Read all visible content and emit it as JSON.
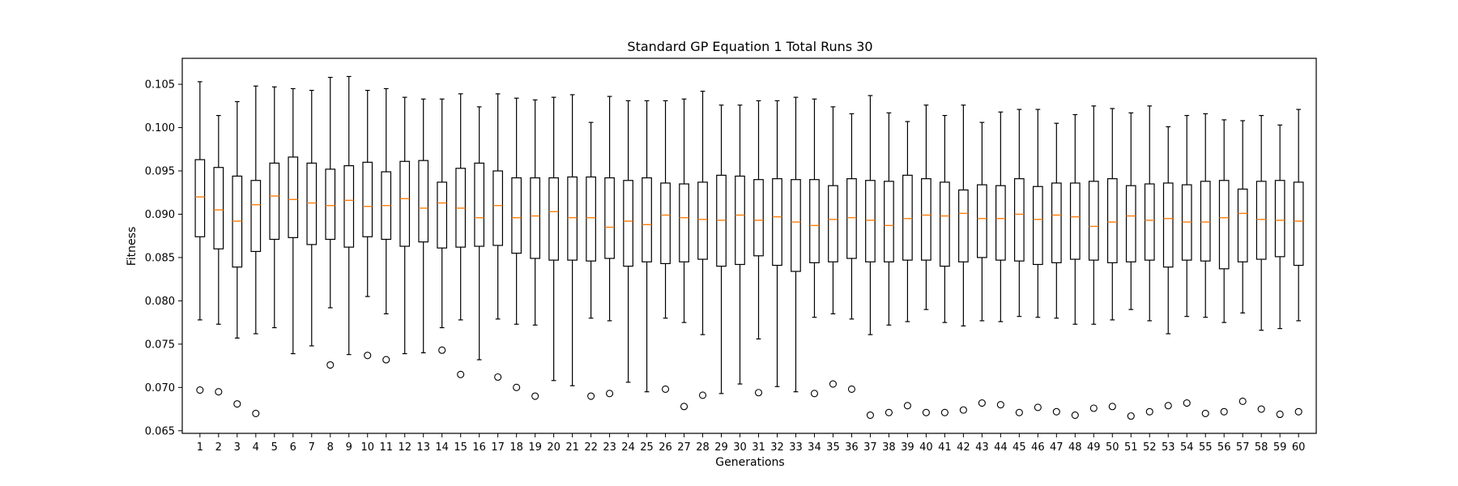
{
  "chart_data": {
    "type": "boxplot",
    "title": "Standard GP Equation 1 Total Runs 30",
    "xlabel": "Generations",
    "ylabel": "Fitness",
    "ylim": [
      0.0647,
      0.108
    ],
    "yticks": [
      0.065,
      0.07,
      0.075,
      0.08,
      0.085,
      0.09,
      0.095,
      0.1,
      0.105
    ],
    "ytick_labels": [
      "0.065",
      "0.070",
      "0.075",
      "0.080",
      "0.085",
      "0.090",
      "0.095",
      "0.100",
      "0.105"
    ],
    "grid": false,
    "colors": {
      "box": "#000000",
      "median": "#ff7f0e",
      "whisker": "#000000",
      "flier": "#000000"
    },
    "categories": [
      "1",
      "2",
      "3",
      "4",
      "5",
      "6",
      "7",
      "8",
      "9",
      "10",
      "11",
      "12",
      "13",
      "14",
      "15",
      "16",
      "17",
      "18",
      "19",
      "20",
      "21",
      "22",
      "23",
      "24",
      "25",
      "26",
      "27",
      "28",
      "29",
      "30",
      "31",
      "32",
      "33",
      "34",
      "35",
      "36",
      "37",
      "38",
      "39",
      "40",
      "41",
      "42",
      "43",
      "44",
      "45",
      "46",
      "47",
      "48",
      "49",
      "50",
      "51",
      "52",
      "53",
      "54",
      "55",
      "56",
      "57",
      "58",
      "59",
      "60"
    ],
    "boxes": [
      {
        "wlo": 0.0778,
        "q1": 0.0874,
        "med": 0.092,
        "q3": 0.0963,
        "whi": 0.1053,
        "fliers": [
          0.0697
        ]
      },
      {
        "wlo": 0.0773,
        "q1": 0.086,
        "med": 0.0905,
        "q3": 0.0954,
        "whi": 0.1014,
        "fliers": [
          0.0695
        ]
      },
      {
        "wlo": 0.0757,
        "q1": 0.0839,
        "med": 0.0892,
        "q3": 0.0944,
        "whi": 0.103,
        "fliers": [
          0.0681
        ]
      },
      {
        "wlo": 0.0762,
        "q1": 0.0857,
        "med": 0.0911,
        "q3": 0.0939,
        "whi": 0.1048,
        "fliers": [
          0.067
        ]
      },
      {
        "wlo": 0.0769,
        "q1": 0.0871,
        "med": 0.0921,
        "q3": 0.0959,
        "whi": 0.1047,
        "fliers": []
      },
      {
        "wlo": 0.0739,
        "q1": 0.0873,
        "med": 0.0917,
        "q3": 0.0966,
        "whi": 0.1045,
        "fliers": []
      },
      {
        "wlo": 0.0748,
        "q1": 0.0865,
        "med": 0.0913,
        "q3": 0.0959,
        "whi": 0.1043,
        "fliers": []
      },
      {
        "wlo": 0.0792,
        "q1": 0.0871,
        "med": 0.091,
        "q3": 0.0952,
        "whi": 0.1058,
        "fliers": [
          0.0726
        ]
      },
      {
        "wlo": 0.0738,
        "q1": 0.0862,
        "med": 0.0916,
        "q3": 0.0956,
        "whi": 0.1059,
        "fliers": []
      },
      {
        "wlo": 0.0805,
        "q1": 0.0874,
        "med": 0.0909,
        "q3": 0.096,
        "whi": 0.1043,
        "fliers": [
          0.0737
        ]
      },
      {
        "wlo": 0.0785,
        "q1": 0.0871,
        "med": 0.091,
        "q3": 0.0949,
        "whi": 0.1045,
        "fliers": [
          0.0732
        ]
      },
      {
        "wlo": 0.0739,
        "q1": 0.0863,
        "med": 0.0918,
        "q3": 0.0961,
        "whi": 0.1035,
        "fliers": []
      },
      {
        "wlo": 0.074,
        "q1": 0.0868,
        "med": 0.0907,
        "q3": 0.0962,
        "whi": 0.1033,
        "fliers": []
      },
      {
        "wlo": 0.0769,
        "q1": 0.0861,
        "med": 0.0913,
        "q3": 0.0937,
        "whi": 0.1033,
        "fliers": [
          0.0743
        ]
      },
      {
        "wlo": 0.0778,
        "q1": 0.0862,
        "med": 0.0907,
        "q3": 0.0953,
        "whi": 0.1039,
        "fliers": [
          0.0715
        ]
      },
      {
        "wlo": 0.0732,
        "q1": 0.0863,
        "med": 0.0896,
        "q3": 0.0959,
        "whi": 0.1024,
        "fliers": []
      },
      {
        "wlo": 0.0779,
        "q1": 0.0864,
        "med": 0.091,
        "q3": 0.095,
        "whi": 0.1039,
        "fliers": [
          0.0712
        ]
      },
      {
        "wlo": 0.0773,
        "q1": 0.0855,
        "med": 0.0896,
        "q3": 0.0942,
        "whi": 0.1034,
        "fliers": [
          0.07
        ]
      },
      {
        "wlo": 0.0772,
        "q1": 0.0849,
        "med": 0.0898,
        "q3": 0.0942,
        "whi": 0.1032,
        "fliers": [
          0.069
        ]
      },
      {
        "wlo": 0.0708,
        "q1": 0.0847,
        "med": 0.0903,
        "q3": 0.0942,
        "whi": 0.1035,
        "fliers": []
      },
      {
        "wlo": 0.0702,
        "q1": 0.0847,
        "med": 0.0896,
        "q3": 0.0943,
        "whi": 0.1038,
        "fliers": []
      },
      {
        "wlo": 0.078,
        "q1": 0.0846,
        "med": 0.0896,
        "q3": 0.0943,
        "whi": 0.1006,
        "fliers": [
          0.069
        ]
      },
      {
        "wlo": 0.0777,
        "q1": 0.0849,
        "med": 0.0885,
        "q3": 0.0942,
        "whi": 0.1036,
        "fliers": [
          0.0693
        ]
      },
      {
        "wlo": 0.0706,
        "q1": 0.084,
        "med": 0.0892,
        "q3": 0.0939,
        "whi": 0.1031,
        "fliers": []
      },
      {
        "wlo": 0.0695,
        "q1": 0.0845,
        "med": 0.0888,
        "q3": 0.0942,
        "whi": 0.1031,
        "fliers": []
      },
      {
        "wlo": 0.078,
        "q1": 0.0843,
        "med": 0.0899,
        "q3": 0.0936,
        "whi": 0.1031,
        "fliers": [
          0.0698
        ]
      },
      {
        "wlo": 0.0775,
        "q1": 0.0845,
        "med": 0.0896,
        "q3": 0.0935,
        "whi": 0.1033,
        "fliers": [
          0.0678
        ]
      },
      {
        "wlo": 0.0761,
        "q1": 0.0848,
        "med": 0.0894,
        "q3": 0.0937,
        "whi": 0.1042,
        "fliers": [
          0.0691
        ]
      },
      {
        "wlo": 0.0693,
        "q1": 0.084,
        "med": 0.0893,
        "q3": 0.0945,
        "whi": 0.1026,
        "fliers": []
      },
      {
        "wlo": 0.0704,
        "q1": 0.0842,
        "med": 0.0899,
        "q3": 0.0944,
        "whi": 0.1026,
        "fliers": []
      },
      {
        "wlo": 0.0756,
        "q1": 0.0852,
        "med": 0.0893,
        "q3": 0.094,
        "whi": 0.1031,
        "fliers": [
          0.0694
        ]
      },
      {
        "wlo": 0.0701,
        "q1": 0.0841,
        "med": 0.0897,
        "q3": 0.0941,
        "whi": 0.1031,
        "fliers": []
      },
      {
        "wlo": 0.0695,
        "q1": 0.0834,
        "med": 0.0891,
        "q3": 0.094,
        "whi": 0.1035,
        "fliers": []
      },
      {
        "wlo": 0.0781,
        "q1": 0.0844,
        "med": 0.0887,
        "q3": 0.094,
        "whi": 0.1033,
        "fliers": [
          0.0693
        ]
      },
      {
        "wlo": 0.0785,
        "q1": 0.0845,
        "med": 0.0894,
        "q3": 0.0933,
        "whi": 0.1024,
        "fliers": [
          0.0704
        ]
      },
      {
        "wlo": 0.0779,
        "q1": 0.0849,
        "med": 0.0896,
        "q3": 0.0941,
        "whi": 0.1016,
        "fliers": [
          0.0698
        ]
      },
      {
        "wlo": 0.0761,
        "q1": 0.0845,
        "med": 0.0893,
        "q3": 0.0939,
        "whi": 0.1037,
        "fliers": [
          0.0668
        ]
      },
      {
        "wlo": 0.0772,
        "q1": 0.0845,
        "med": 0.0887,
        "q3": 0.0938,
        "whi": 0.1017,
        "fliers": [
          0.0671
        ]
      },
      {
        "wlo": 0.0776,
        "q1": 0.0847,
        "med": 0.0895,
        "q3": 0.0945,
        "whi": 0.1007,
        "fliers": [
          0.0679
        ]
      },
      {
        "wlo": 0.079,
        "q1": 0.0847,
        "med": 0.0899,
        "q3": 0.0941,
        "whi": 0.1026,
        "fliers": [
          0.0671
        ]
      },
      {
        "wlo": 0.0775,
        "q1": 0.084,
        "med": 0.0898,
        "q3": 0.0937,
        "whi": 0.1014,
        "fliers": [
          0.0671
        ]
      },
      {
        "wlo": 0.0771,
        "q1": 0.0845,
        "med": 0.0901,
        "q3": 0.0928,
        "whi": 0.1026,
        "fliers": [
          0.0674
        ]
      },
      {
        "wlo": 0.0777,
        "q1": 0.085,
        "med": 0.0895,
        "q3": 0.0934,
        "whi": 0.1006,
        "fliers": [
          0.0682
        ]
      },
      {
        "wlo": 0.0776,
        "q1": 0.0847,
        "med": 0.0895,
        "q3": 0.0933,
        "whi": 0.1018,
        "fliers": [
          0.068
        ]
      },
      {
        "wlo": 0.0782,
        "q1": 0.0846,
        "med": 0.09,
        "q3": 0.0941,
        "whi": 0.1021,
        "fliers": [
          0.0671
        ]
      },
      {
        "wlo": 0.0781,
        "q1": 0.0842,
        "med": 0.0894,
        "q3": 0.0932,
        "whi": 0.1021,
        "fliers": [
          0.0677
        ]
      },
      {
        "wlo": 0.078,
        "q1": 0.0844,
        "med": 0.0899,
        "q3": 0.0936,
        "whi": 0.1005,
        "fliers": [
          0.0672
        ]
      },
      {
        "wlo": 0.0773,
        "q1": 0.0848,
        "med": 0.0897,
        "q3": 0.0936,
        "whi": 0.1015,
        "fliers": [
          0.0668
        ]
      },
      {
        "wlo": 0.0773,
        "q1": 0.0847,
        "med": 0.0886,
        "q3": 0.0938,
        "whi": 0.1025,
        "fliers": [
          0.0676
        ]
      },
      {
        "wlo": 0.0778,
        "q1": 0.0844,
        "med": 0.0891,
        "q3": 0.0941,
        "whi": 0.1022,
        "fliers": [
          0.0678
        ]
      },
      {
        "wlo": 0.079,
        "q1": 0.0845,
        "med": 0.0898,
        "q3": 0.0933,
        "whi": 0.1017,
        "fliers": [
          0.0667
        ]
      },
      {
        "wlo": 0.0777,
        "q1": 0.0847,
        "med": 0.0893,
        "q3": 0.0935,
        "whi": 0.1025,
        "fliers": [
          0.0672
        ]
      },
      {
        "wlo": 0.0762,
        "q1": 0.0839,
        "med": 0.0895,
        "q3": 0.0936,
        "whi": 0.1001,
        "fliers": [
          0.0679
        ]
      },
      {
        "wlo": 0.0782,
        "q1": 0.0847,
        "med": 0.0891,
        "q3": 0.0934,
        "whi": 0.1014,
        "fliers": [
          0.0682
        ]
      },
      {
        "wlo": 0.0781,
        "q1": 0.0846,
        "med": 0.0891,
        "q3": 0.0938,
        "whi": 0.1016,
        "fliers": [
          0.067
        ]
      },
      {
        "wlo": 0.0775,
        "q1": 0.0837,
        "med": 0.0896,
        "q3": 0.0939,
        "whi": 0.1009,
        "fliers": [
          0.0672
        ]
      },
      {
        "wlo": 0.0786,
        "q1": 0.0845,
        "med": 0.0901,
        "q3": 0.0929,
        "whi": 0.1008,
        "fliers": [
          0.0684
        ]
      },
      {
        "wlo": 0.0766,
        "q1": 0.0848,
        "med": 0.0894,
        "q3": 0.0938,
        "whi": 0.1014,
        "fliers": [
          0.0675
        ]
      },
      {
        "wlo": 0.0768,
        "q1": 0.0851,
        "med": 0.0893,
        "q3": 0.0939,
        "whi": 0.1003,
        "fliers": [
          0.0669
        ]
      },
      {
        "wlo": 0.0777,
        "q1": 0.0841,
        "med": 0.0892,
        "q3": 0.0937,
        "whi": 0.1021,
        "fliers": [
          0.0672
        ]
      }
    ]
  }
}
